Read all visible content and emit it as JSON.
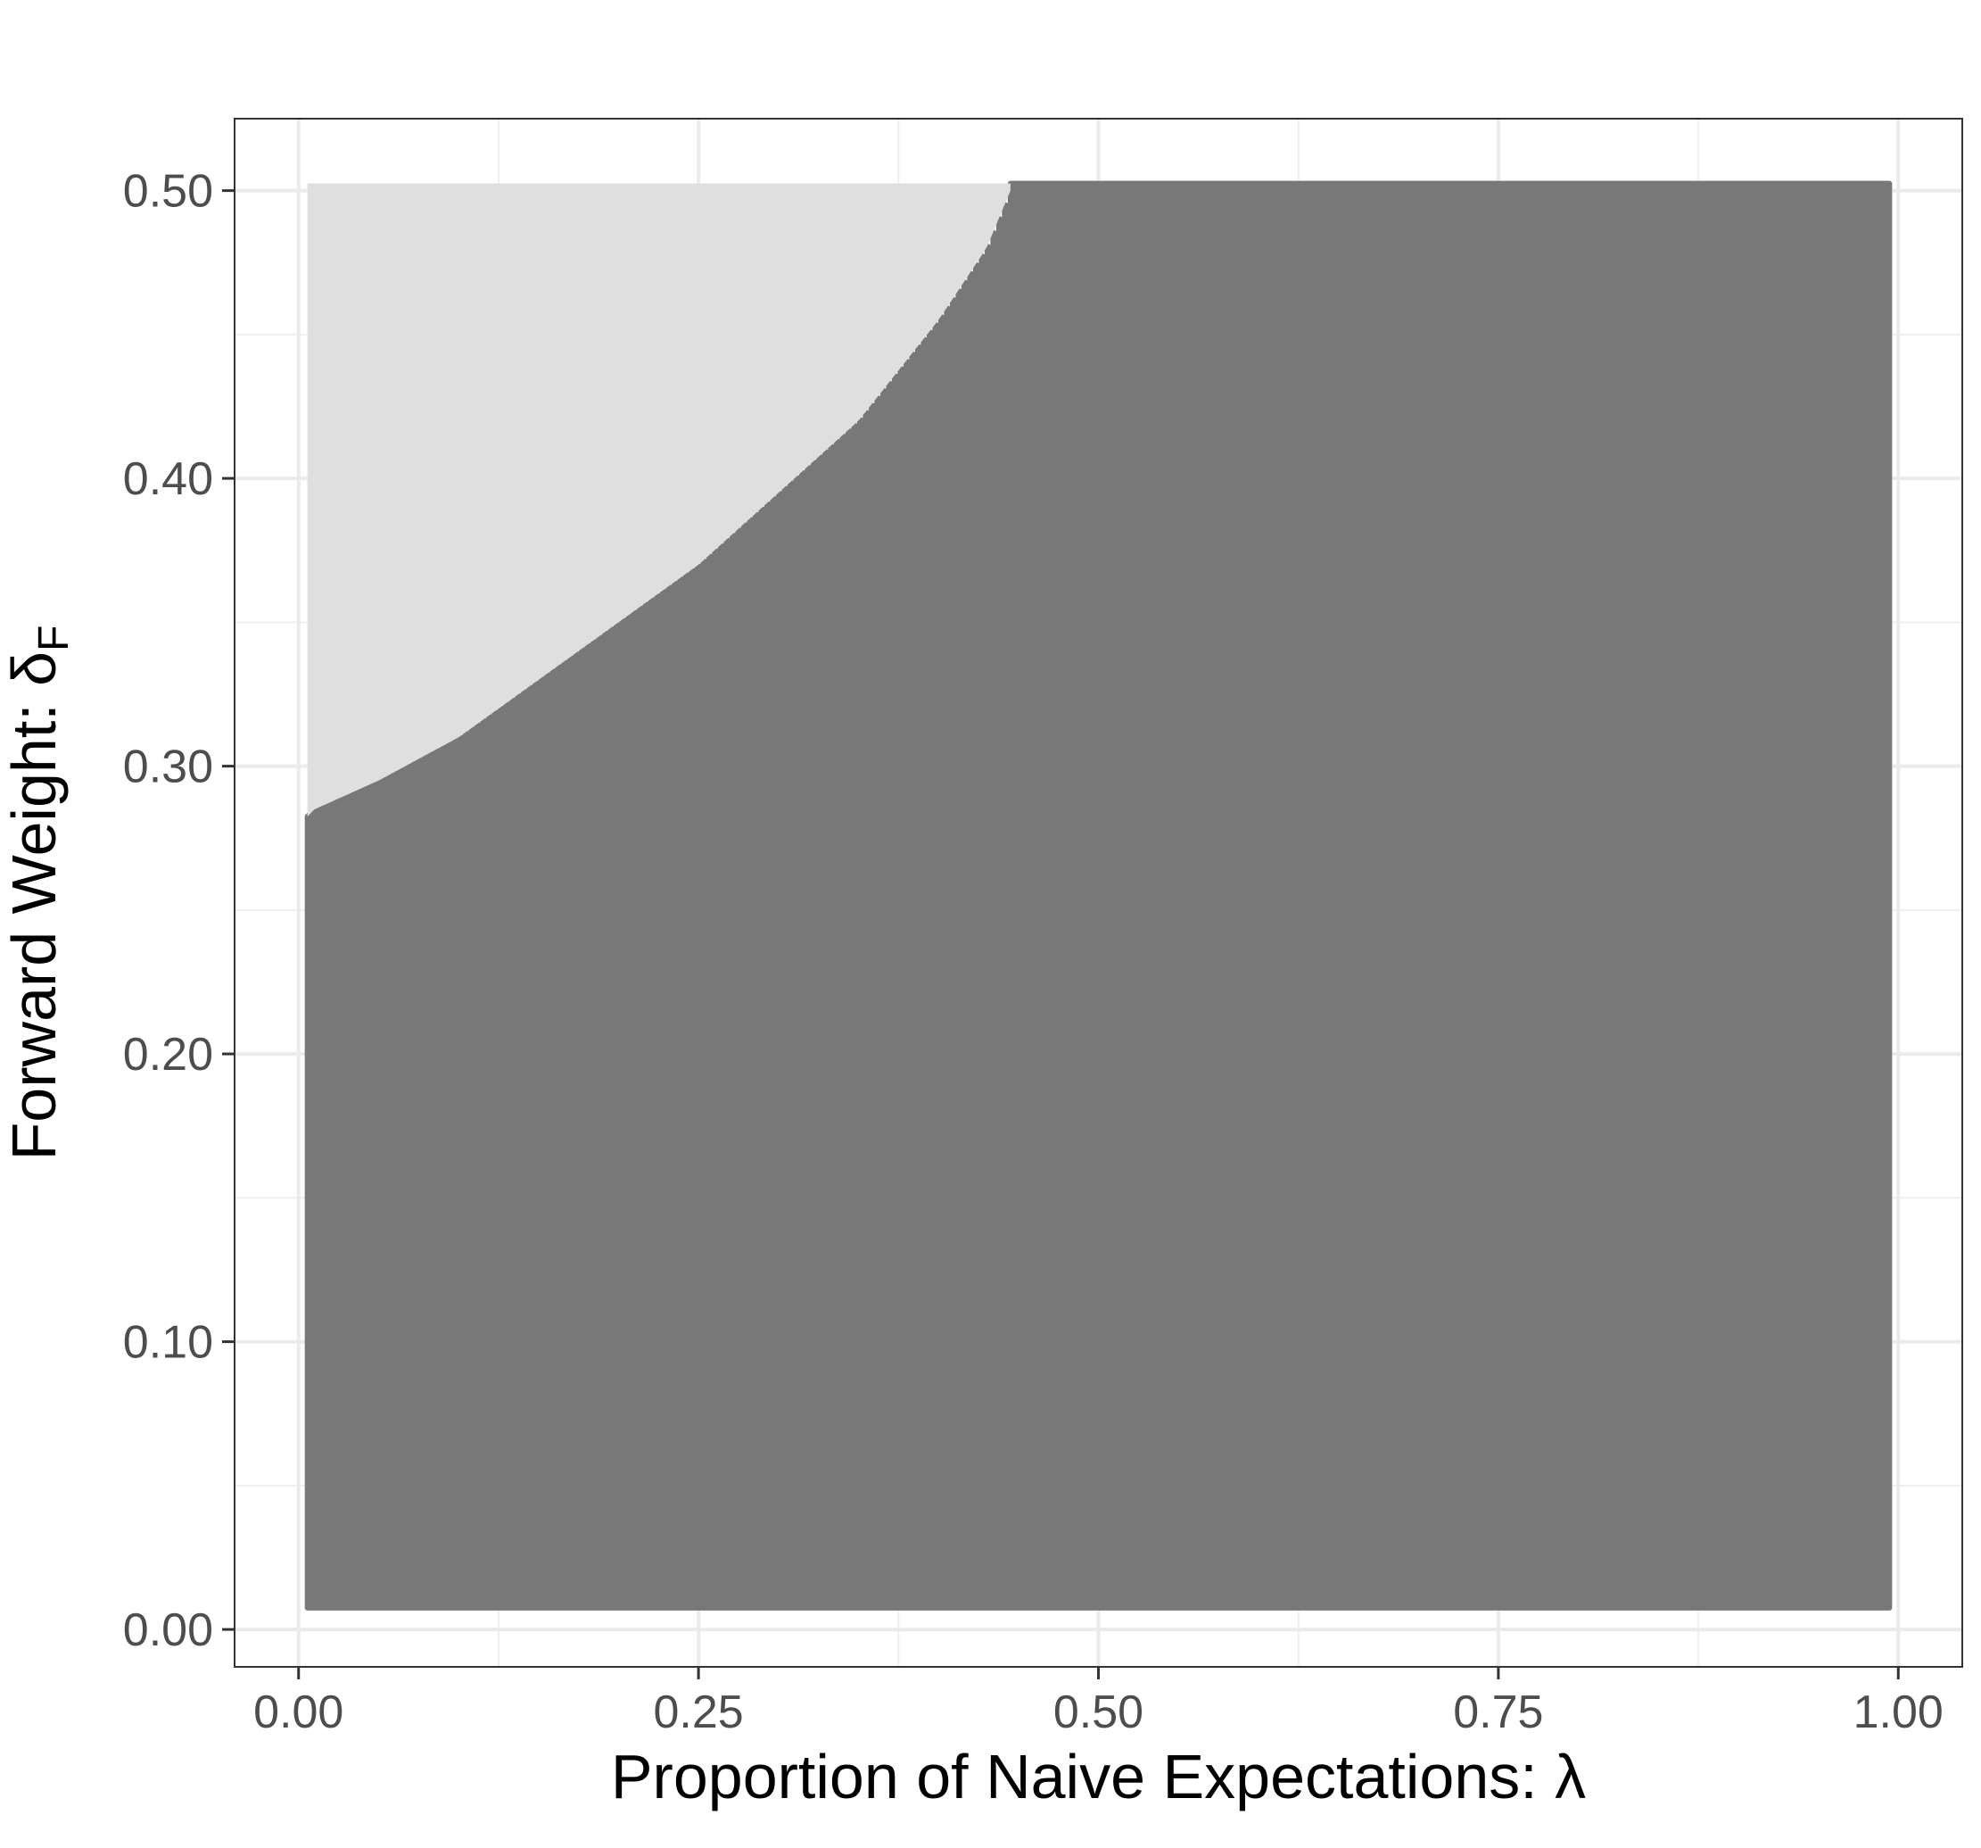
{
  "chart_data": {
    "type": "heatmap",
    "title": "",
    "xlabel": "Proportion of Naive Expectations: λ",
    "ylabel_main": "Forward Weight: δ",
    "ylabel_subscript": "F",
    "xlim": [
      -0.04,
      1.04
    ],
    "ylim": [
      -0.013,
      0.525
    ],
    "x_ticks": [
      0.0,
      0.25,
      0.5,
      0.75,
      1.0
    ],
    "x_tick_labels": [
      "0.00",
      "0.25",
      "0.50",
      "0.75",
      "1.00"
    ],
    "y_ticks": [
      0.0,
      0.1,
      0.2,
      0.3,
      0.4,
      0.5
    ],
    "y_tick_labels": [
      "0.00",
      "0.10",
      "0.20",
      "0.30",
      "0.40",
      "0.50"
    ],
    "grid": true,
    "legend": "none",
    "grid_x_range": [
      0.01,
      0.99
    ],
    "grid_y_range": [
      0.01,
      0.5
    ],
    "colors": {
      "light_region": "#dfdfdf",
      "dark_region": "#787878"
    },
    "regions": [
      {
        "name": "light",
        "color": "#dfdfdf",
        "description_position": "upper-left"
      },
      {
        "name": "dark",
        "color": "#787878",
        "description_position": "lower-right"
      }
    ],
    "boundary": {
      "x": [
        0.01,
        0.05,
        0.1,
        0.15,
        0.2,
        0.25,
        0.3,
        0.35,
        0.4,
        0.43,
        0.445
      ],
      "y": [
        0.285,
        0.295,
        0.31,
        0.33,
        0.35,
        0.37,
        0.395,
        0.42,
        0.455,
        0.48,
        0.5
      ]
    }
  }
}
